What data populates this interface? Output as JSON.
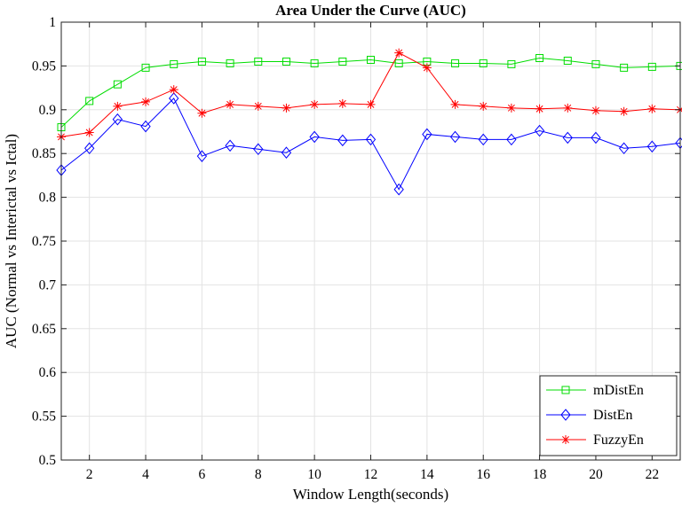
{
  "chart_data": {
    "type": "line",
    "title": "Area Under the Curve (AUC)",
    "xlabel": "Window Length(seconds)",
    "ylabel": "AUC (Normal vs Interictal vs Ictal)",
    "xlim": [
      1,
      23
    ],
    "ylim": [
      0.5,
      1
    ],
    "xticks": [
      2,
      4,
      6,
      8,
      10,
      12,
      14,
      16,
      18,
      20,
      22
    ],
    "yticks": [
      0.5,
      0.55,
      0.6,
      0.65,
      0.7,
      0.75,
      0.8,
      0.85,
      0.9,
      0.95,
      1
    ],
    "ytick_labels": [
      "0.5",
      "0.55",
      "0.6",
      "0.65",
      "0.7",
      "0.75",
      "0.8",
      "0.85",
      "0.9",
      "0.95",
      "1"
    ],
    "grid": true,
    "legend_position": "bottom-right",
    "x": [
      1,
      2,
      3,
      4,
      5,
      6,
      7,
      8,
      9,
      10,
      11,
      12,
      13,
      14,
      15,
      16,
      17,
      18,
      19,
      20,
      21,
      22,
      23
    ],
    "series": [
      {
        "name": "mDistEn",
        "color": "#00dd00",
        "marker": "square",
        "values": [
          0.88,
          0.91,
          0.929,
          0.948,
          0.952,
          0.955,
          0.953,
          0.955,
          0.955,
          0.953,
          0.955,
          0.957,
          0.953,
          0.955,
          0.953,
          0.953,
          0.952,
          0.959,
          0.956,
          0.952,
          0.948,
          0.949,
          0.95
        ]
      },
      {
        "name": "DistEn",
        "color": "#0000ff",
        "marker": "diamond",
        "values": [
          0.831,
          0.856,
          0.889,
          0.881,
          0.913,
          0.847,
          0.859,
          0.855,
          0.851,
          0.869,
          0.865,
          0.866,
          0.809,
          0.872,
          0.869,
          0.866,
          0.866,
          0.876,
          0.868,
          0.868,
          0.856,
          0.858,
          0.862
        ]
      },
      {
        "name": "FuzzyEn",
        "color": "#ff0000",
        "marker": "asterisk",
        "values": [
          0.869,
          0.874,
          0.904,
          0.909,
          0.923,
          0.896,
          0.906,
          0.904,
          0.902,
          0.906,
          0.907,
          0.906,
          0.965,
          0.948,
          0.906,
          0.904,
          0.902,
          0.901,
          0.902,
          0.899,
          0.898,
          0.901,
          0.9
        ]
      }
    ]
  }
}
